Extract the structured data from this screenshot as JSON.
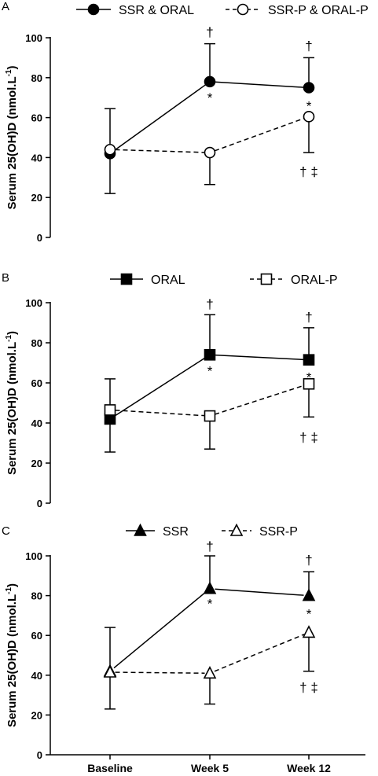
{
  "chart_data": [
    {
      "panel_label": "A",
      "type": "line",
      "ylabel": "Serum 25(OH)D (nmol.L",
      "ylabel_sup": "-1",
      "ylim": [
        0,
        100
      ],
      "yticks": [
        "0",
        "20",
        "40",
        "60",
        "80",
        "100"
      ],
      "categories": [
        "Baseline",
        "Week 5",
        "Week 12"
      ],
      "marker": "circle",
      "series": [
        {
          "name": "SSR & ORAL",
          "filled": true,
          "dashed": false,
          "values": [
            42,
            78,
            75
          ],
          "err_upper": [
            64.5,
            97,
            90
          ],
          "err_lower": [
            null,
            null,
            null
          ]
        },
        {
          "name": "SSR-P & ORAL-P",
          "filled": false,
          "dashed": true,
          "values": [
            44,
            42.5,
            60.5
          ],
          "err_upper": [
            null,
            null,
            null
          ],
          "err_lower": [
            22,
            26.5,
            42.5
          ]
        }
      ],
      "annotations": [
        {
          "text": "†",
          "x": 1,
          "y": 103
        },
        {
          "text": "*",
          "x": 1,
          "y": 70
        },
        {
          "text": "†",
          "x": 2,
          "y": 96
        },
        {
          "text": "*",
          "x": 2,
          "y": 66
        },
        {
          "text": "† ‡",
          "x": 2,
          "y": 33
        }
      ]
    },
    {
      "panel_label": "B",
      "type": "line",
      "ylabel": "Serum 25(OH)D (nmol.L",
      "ylabel_sup": "-1",
      "ylim": [
        0,
        100
      ],
      "yticks": [
        "0",
        "20",
        "40",
        "60",
        "80",
        "100"
      ],
      "categories": [
        "Baseline",
        "Week 5",
        "Week 12"
      ],
      "marker": "square",
      "series": [
        {
          "name": "ORAL",
          "filled": true,
          "dashed": false,
          "values": [
            42,
            74,
            71.5
          ],
          "err_upper": [
            62,
            94,
            87.5
          ],
          "err_lower": [
            null,
            null,
            null
          ]
        },
        {
          "name": "ORAL-P",
          "filled": false,
          "dashed": true,
          "values": [
            46.5,
            43.5,
            59.5
          ],
          "err_upper": [
            null,
            null,
            null
          ],
          "err_lower": [
            25.5,
            27,
            43
          ]
        }
      ],
      "annotations": [
        {
          "text": "†",
          "x": 1,
          "y": 99.5
        },
        {
          "text": "*",
          "x": 1,
          "y": 66
        },
        {
          "text": "†",
          "x": 2,
          "y": 93
        },
        {
          "text": "*",
          "x": 2,
          "y": 63
        },
        {
          "text": "† ‡",
          "x": 2,
          "y": 33
        }
      ]
    },
    {
      "panel_label": "C",
      "type": "line",
      "ylabel": "Serum 25(OH)D (nmol.L",
      "ylabel_sup": "-1",
      "ylim": [
        0,
        100
      ],
      "yticks": [
        "0",
        "20",
        "40",
        "60",
        "80",
        "100"
      ],
      "categories": [
        "Baseline",
        "Week 5",
        "Week 12"
      ],
      "marker": "triangle",
      "series": [
        {
          "name": "SSR",
          "filled": true,
          "dashed": false,
          "values": [
            42,
            83.5,
            80
          ],
          "err_upper": [
            64,
            100,
            92
          ],
          "err_lower": [
            null,
            null,
            null
          ]
        },
        {
          "name": "SSR-P",
          "filled": false,
          "dashed": true,
          "values": [
            41.5,
            41,
            61.5
          ],
          "err_upper": [
            null,
            null,
            null
          ],
          "err_lower": [
            23,
            25.5,
            42
          ]
        }
      ],
      "annotations": [
        {
          "text": "†",
          "x": 1,
          "y": 105
        },
        {
          "text": "*",
          "x": 1,
          "y": 76
        },
        {
          "text": "†",
          "x": 2,
          "y": 98
        },
        {
          "text": "*",
          "x": 2,
          "y": 71
        },
        {
          "text": "† ‡",
          "x": 2,
          "y": 34
        }
      ]
    }
  ]
}
